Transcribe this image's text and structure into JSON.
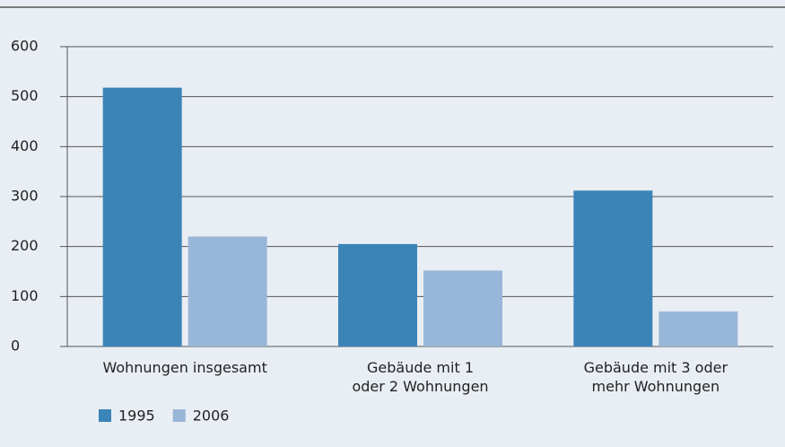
{
  "chart_data": {
    "type": "bar",
    "categories": [
      "Wohnungen insgesamt",
      "Gebäude mit 1\noder 2 Wohnungen",
      "Gebäude mit 3 oder\nmehr Wohnungen"
    ],
    "series": [
      {
        "name": "1995",
        "color": "#3a84b8",
        "values": [
          518,
          205,
          312
        ]
      },
      {
        "name": "2006",
        "color": "#98b6d8",
        "values": [
          220,
          152,
          70
        ]
      }
    ],
    "ylim": [
      0,
      600
    ],
    "yticks": [
      0,
      100,
      200,
      300,
      400,
      500,
      600
    ],
    "grid": true,
    "legend": "bottom-left"
  }
}
